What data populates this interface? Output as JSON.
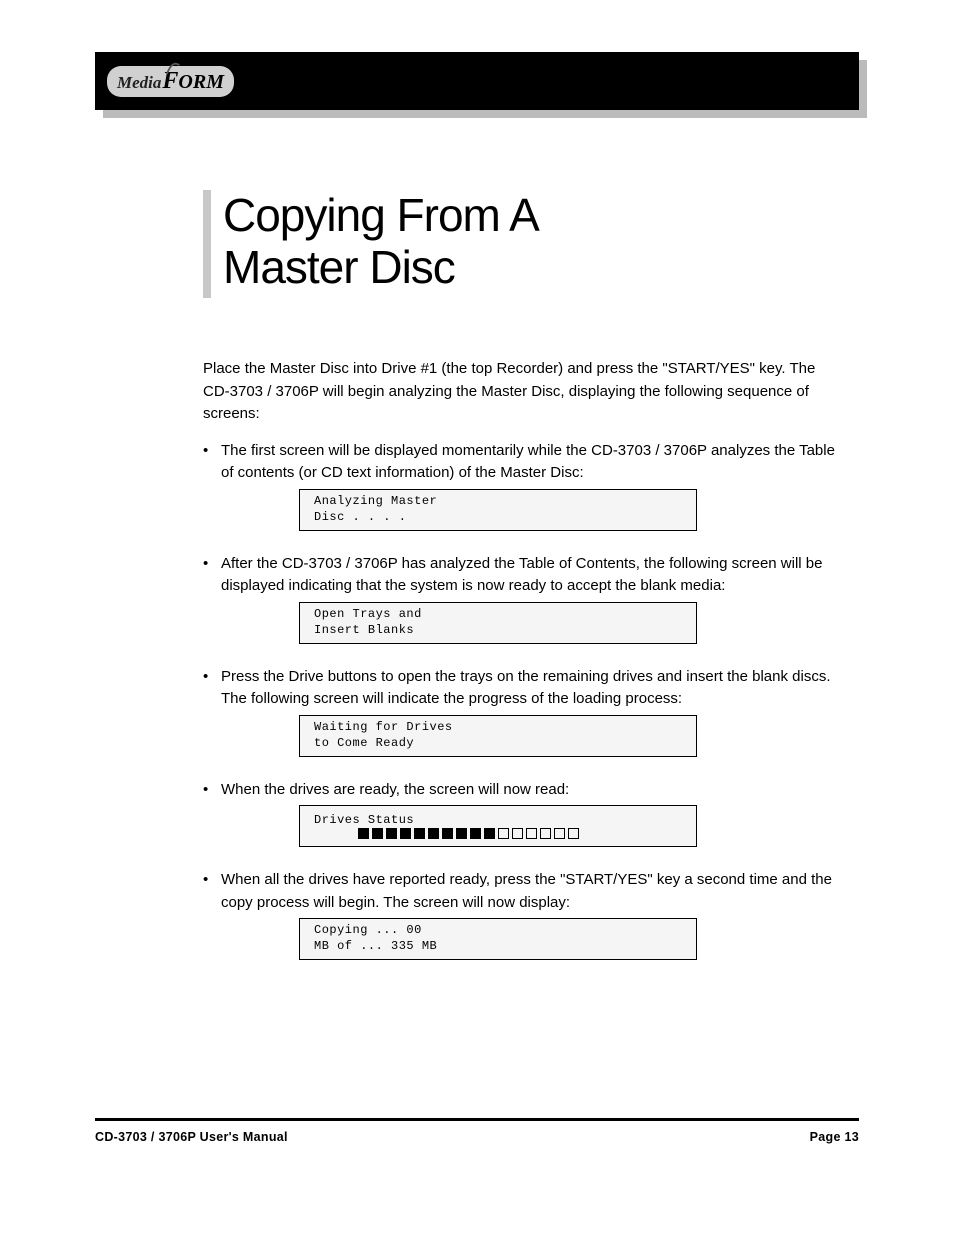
{
  "logo": {
    "part1": "Media",
    "part2": "F",
    "part3": "ORM"
  },
  "section": {
    "line1": "Copying From A",
    "line2": "Master Disc"
  },
  "intro": "Place the Master Disc into Drive #1 (the top Recorder) and press the \"START/YES\" key. The CD-3703 / 3706P will begin analyzing the Master Disc, displaying the following sequence of screens:",
  "bullets": [
    {
      "pre": "The first screen will be displayed momentarily while the CD-3703 / 3706P analyzes the Table of contents (or CD text information) of the Master Disc:",
      "lcd": [
        "Analyzing Master",
        "Disc . . . ."
      ]
    },
    {
      "pre": "After the CD-3703 / 3706P has analyzed the Table of Contents, the following screen will be displayed indicating that the system is now ready to accept the blank media:",
      "lcd": [
        "Open Trays and",
        "Insert Blanks"
      ]
    },
    {
      "pre": "Press the Drive buttons to open the trays on the remaining drives and insert the blank discs. The following screen will indicate the progress of the loading process:",
      "lcd": [
        "Waiting for Drives",
        "to Come Ready"
      ]
    },
    {
      "pre": "When the drives are ready, the screen will now read:",
      "lcd_progress": {
        "line1": "Drives Status",
        "filled": 10,
        "empty": 6
      }
    },
    {
      "pre": "When all the drives have reported ready, press the \"START/YES\" key a second time and the copy process will begin. The screen will now display:",
      "lcd": [
        "Copying ... 00",
        "MB of ... 335 MB"
      ]
    }
  ],
  "footer": {
    "left": "CD-3703 / 3706P User's Manual",
    "right": "Page 13"
  },
  "styling": {
    "page_bg": "#ffffff",
    "header_bg": "#000000",
    "header_shadow": "#bbbbbb",
    "vbar_color": "#c8c8c8",
    "lcd_bg": "#f5f5f5",
    "lcd_border": "#000000",
    "body_font_size": 15,
    "title_font_size": 46,
    "lcd_font_family": "Courier New"
  }
}
